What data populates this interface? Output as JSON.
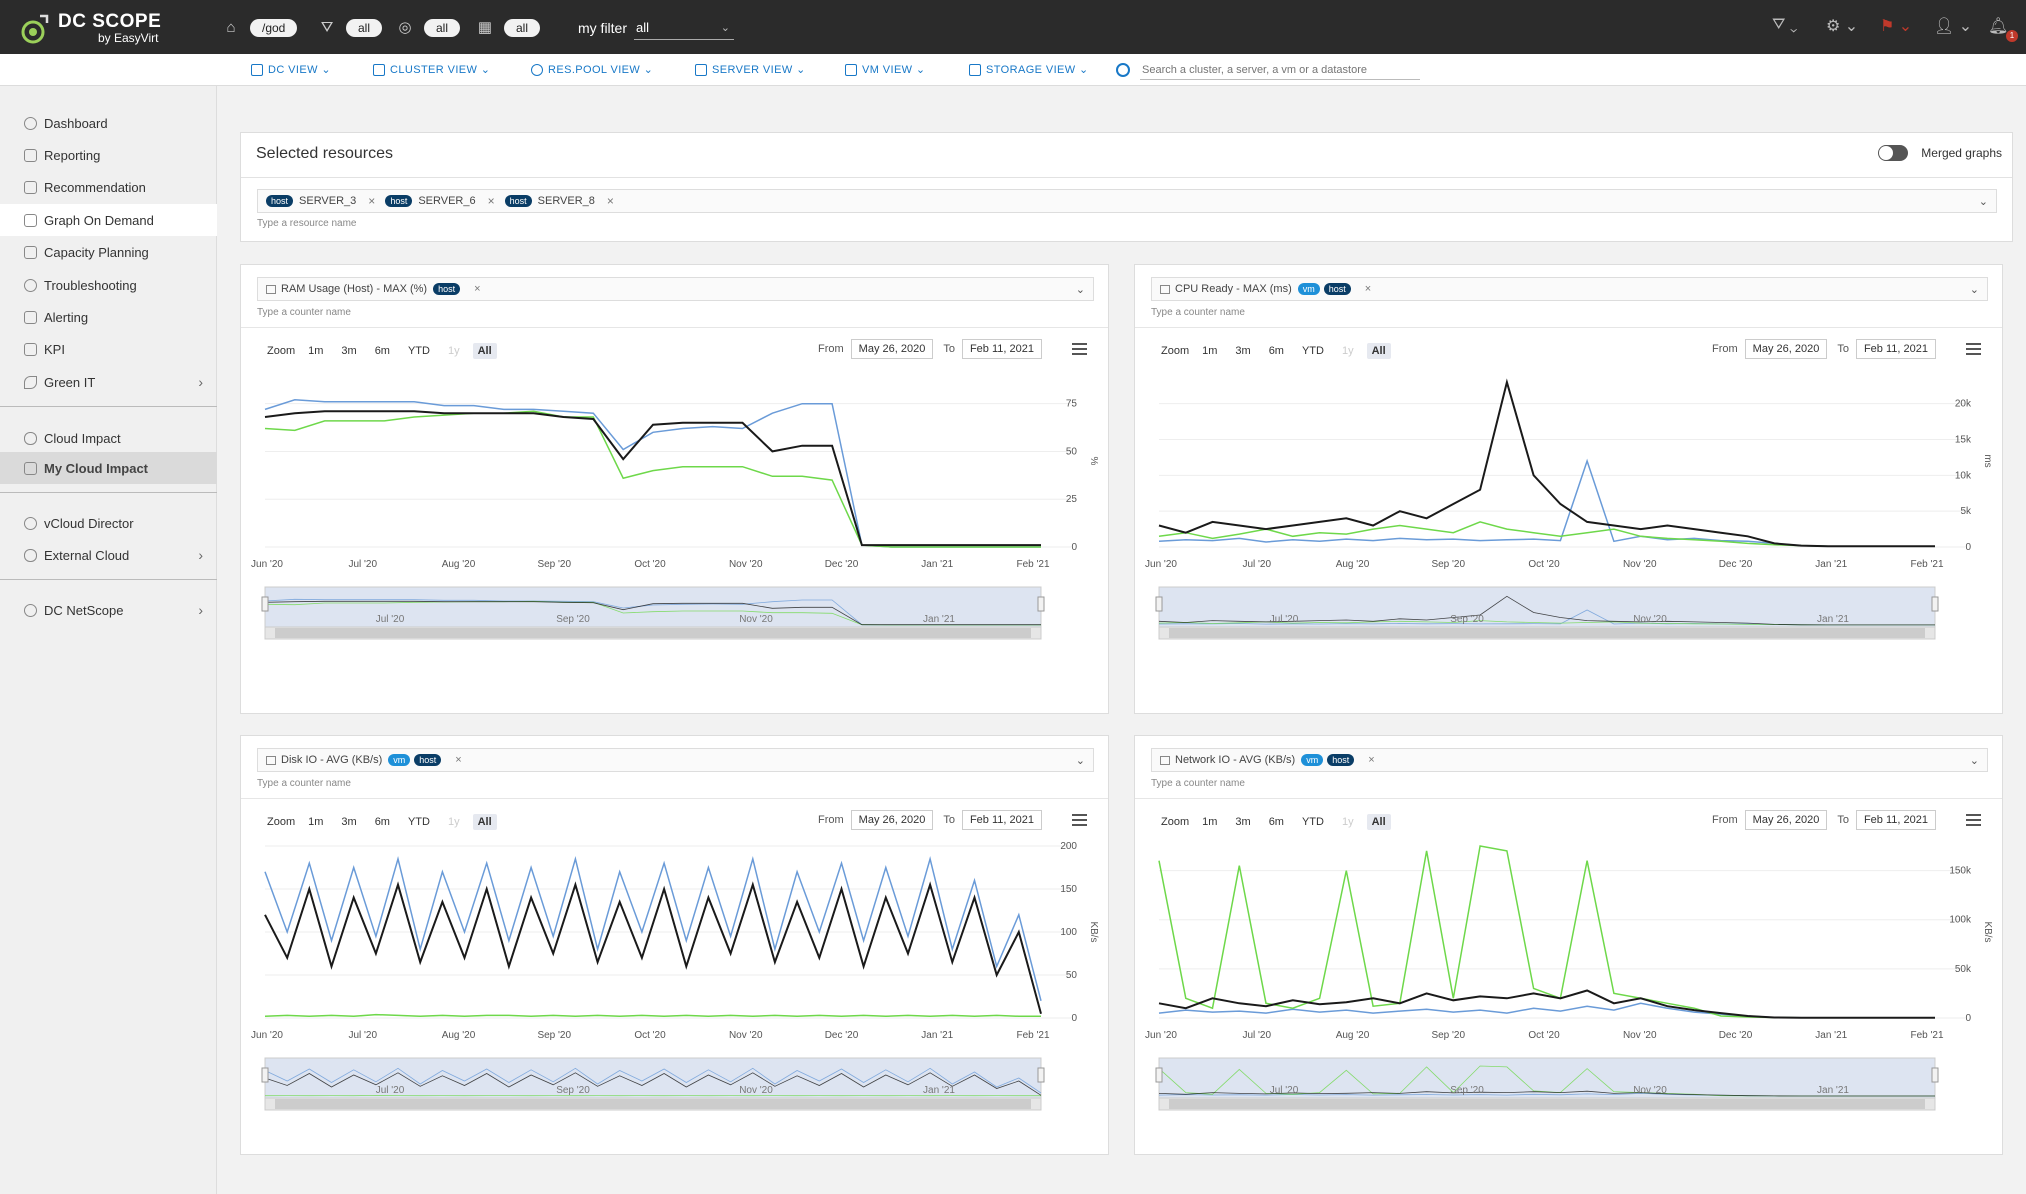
{
  "app": {
    "title": "DC SCOPE",
    "subtitle": "by EasyVirt"
  },
  "topbar": {
    "filters": [
      {
        "icon": "home-icon",
        "value": "/god"
      },
      {
        "icon": "funnel-icon",
        "value": "all"
      },
      {
        "icon": "target-icon",
        "value": "all"
      },
      {
        "icon": "calendar-icon",
        "value": "all"
      }
    ],
    "my_filter_label": "my filter",
    "my_filter_value": "all",
    "notification_count": "1"
  },
  "subnav": {
    "items": [
      {
        "label": "DC VIEW",
        "icon": "datacenter-icon"
      },
      {
        "label": "CLUSTER VIEW",
        "icon": "cluster-icon"
      },
      {
        "label": "RES.POOL VIEW",
        "icon": "gauge-icon"
      },
      {
        "label": "SERVER VIEW",
        "icon": "server-icon"
      },
      {
        "label": "VM VIEW",
        "icon": "vm-icon"
      },
      {
        "label": "STORAGE VIEW",
        "icon": "storage-icon"
      }
    ],
    "search_placeholder": "Search a cluster, a server, a vm or a datastore"
  },
  "sidebar": {
    "items": [
      {
        "label": "Dashboard",
        "icon": "dashboard-icon"
      },
      {
        "label": "Reporting",
        "icon": "report-icon"
      },
      {
        "label": "Recommendation",
        "icon": "thumb-icon"
      },
      {
        "label": "Graph On Demand",
        "icon": "chart-icon"
      },
      {
        "label": "Capacity Planning",
        "icon": "sliders-icon"
      },
      {
        "label": "Troubleshooting",
        "icon": "info-icon"
      },
      {
        "label": "Alerting",
        "icon": "bell-icon"
      },
      {
        "label": "KPI",
        "icon": "kpi-icon"
      },
      {
        "label": "Green IT",
        "icon": "leaf-icon"
      },
      {
        "label": "Cloud Impact",
        "icon": "cloud-icon"
      },
      {
        "label": "My Cloud Impact",
        "icon": "house-icon"
      },
      {
        "label": "vCloud Director",
        "icon": "vcloud-icon"
      },
      {
        "label": "External Cloud",
        "icon": "cloud-icon"
      },
      {
        "label": "DC NetScope",
        "icon": "globe-icon"
      }
    ]
  },
  "selected_resources": {
    "title": "Selected resources",
    "merged_label": "Merged graphs",
    "chips": [
      {
        "tag": "host",
        "name": "SERVER_3"
      },
      {
        "tag": "host",
        "name": "SERVER_6"
      },
      {
        "tag": "host",
        "name": "SERVER_8"
      }
    ],
    "hint": "Type a resource name"
  },
  "chart_controls": {
    "zoom_label": "Zoom",
    "zoom_buttons": [
      "1m",
      "3m",
      "6m",
      "YTD",
      "1y",
      "All"
    ],
    "from_label": "From",
    "from_value": "May 26, 2020",
    "to_label": "To",
    "to_value": "Feb 11, 2021",
    "counter_hint": "Type a counter name"
  },
  "colors": {
    "blue": "#6a9bd8",
    "green": "#6ed84a",
    "black": "#1a1a1a",
    "navy_tag": "#0a3d66",
    "vm_tag": "#1e90d8",
    "accent": "#1878c7"
  },
  "chart_data": [
    {
      "type": "line",
      "title": "RAM Usage (Host) - MAX (%)",
      "tags": [
        "host"
      ],
      "ylabel": "%",
      "yticks": [
        "0",
        "25",
        "50",
        "75"
      ],
      "ylim": [
        0,
        90
      ],
      "xticks": [
        "Jun '20",
        "Jul '20",
        "Aug '20",
        "Sep '20",
        "Oct '20",
        "Nov '20",
        "Dec '20",
        "Jan '21",
        "Feb '21"
      ],
      "nav_labels": [
        "Jul '20",
        "Sep '20",
        "Nov '20",
        "Jan '21"
      ],
      "series": [
        {
          "color": "blue",
          "values": [
            72,
            77,
            76,
            76,
            76,
            76,
            74,
            74,
            72,
            72,
            71,
            70,
            51,
            60,
            62,
            63,
            62,
            70,
            75,
            75,
            1,
            0,
            0,
            0,
            0,
            0,
            0
          ]
        },
        {
          "color": "green",
          "values": [
            62,
            61,
            66,
            66,
            66,
            68,
            69,
            70,
            70,
            71,
            68,
            68,
            36,
            40,
            42,
            42,
            42,
            37,
            37,
            35,
            1,
            0,
            0,
            0,
            0,
            0,
            0
          ]
        },
        {
          "color": "black",
          "values": [
            68,
            70,
            71,
            71,
            71,
            71,
            70,
            70,
            70,
            70,
            68,
            67,
            46,
            64,
            65,
            65,
            65,
            50,
            53,
            53,
            1,
            1,
            1,
            1,
            1,
            1,
            1
          ]
        }
      ]
    },
    {
      "type": "line",
      "title": "CPU Ready - MAX (ms)",
      "tags": [
        "vm",
        "host"
      ],
      "ylabel": "ms",
      "yticks": [
        "0",
        "5k",
        "10k",
        "15k",
        "20k"
      ],
      "ylim": [
        0,
        24000
      ],
      "xticks": [
        "Jun '20",
        "Jul '20",
        "Aug '20",
        "Sep '20",
        "Oct '20",
        "Nov '20",
        "Dec '20",
        "Jan '21",
        "Feb '21"
      ],
      "nav_labels": [
        "Jul '20",
        "Sep '20",
        "Nov '20",
        "Jan '21"
      ],
      "series": [
        {
          "color": "blue",
          "values": [
            800,
            1000,
            900,
            1200,
            700,
            1000,
            800,
            1100,
            900,
            1200,
            1000,
            1100,
            900,
            1000,
            1100,
            900,
            12000,
            800,
            1500,
            1000,
            1200,
            900,
            800,
            500,
            200,
            100,
            100,
            100,
            100,
            100
          ]
        },
        {
          "color": "green",
          "values": [
            1500,
            2000,
            1200,
            1800,
            2500,
            1500,
            2000,
            1800,
            2500,
            3000,
            2500,
            2000,
            3500,
            2500,
            2000,
            1500,
            2000,
            2500,
            1500,
            1200,
            1000,
            800,
            500,
            300,
            200,
            100,
            100,
            100,
            100,
            100
          ]
        },
        {
          "color": "black",
          "values": [
            3000,
            2000,
            3500,
            3000,
            2500,
            3000,
            3500,
            4000,
            3000,
            5000,
            4000,
            6000,
            8000,
            23000,
            10000,
            6000,
            3500,
            3000,
            2500,
            3000,
            2500,
            2000,
            1500,
            500,
            200,
            100,
            100,
            100,
            100,
            100
          ]
        }
      ]
    },
    {
      "type": "line",
      "title": "Disk IO - AVG (KB/s)",
      "tags": [
        "vm",
        "host"
      ],
      "ylabel": "KB/s",
      "yticks": [
        "0",
        "50",
        "100",
        "150",
        "200"
      ],
      "ylim": [
        0,
        200
      ],
      "xticks": [
        "Jun '20",
        "Jul '20",
        "Aug '20",
        "Sep '20",
        "Oct '20",
        "Nov '20",
        "Dec '20",
        "Jan '21",
        "Feb '21"
      ],
      "nav_labels": [
        "Jul '20",
        "Sep '20",
        "Nov '20",
        "Jan '21"
      ],
      "series": [
        {
          "color": "blue",
          "values": [
            170,
            100,
            180,
            90,
            175,
            95,
            185,
            80,
            170,
            100,
            180,
            90,
            175,
            95,
            185,
            80,
            170,
            100,
            180,
            90,
            175,
            95,
            185,
            80,
            170,
            100,
            180,
            90,
            175,
            95,
            185,
            80,
            160,
            60,
            120,
            20
          ]
        },
        {
          "color": "green",
          "values": [
            2,
            3,
            2,
            3,
            2,
            4,
            3,
            2,
            3,
            2,
            3,
            3,
            2,
            3,
            2,
            3,
            2,
            3,
            2,
            3,
            2,
            3,
            2,
            3,
            2,
            3,
            2,
            3,
            2,
            3,
            2,
            3,
            2,
            3,
            2,
            2
          ]
        },
        {
          "color": "black",
          "values": [
            120,
            70,
            150,
            60,
            140,
            75,
            155,
            65,
            135,
            70,
            150,
            60,
            140,
            75,
            155,
            65,
            135,
            70,
            150,
            60,
            140,
            75,
            155,
            65,
            135,
            70,
            150,
            60,
            140,
            75,
            155,
            65,
            140,
            50,
            100,
            5
          ]
        }
      ]
    },
    {
      "type": "line",
      "title": "Network IO - AVG (KB/s)",
      "tags": [
        "vm",
        "host"
      ],
      "ylabel": "KB/s",
      "yticks": [
        "0",
        "50k",
        "100k",
        "150k"
      ],
      "ylim": [
        0,
        175000
      ],
      "xticks": [
        "Jun '20",
        "Jul '20",
        "Aug '20",
        "Sep '20",
        "Oct '20",
        "Nov '20",
        "Dec '20",
        "Jan '21",
        "Feb '21"
      ],
      "nav_labels": [
        "Jul '20",
        "Sep '20",
        "Nov '20",
        "Jan '21"
      ],
      "series": [
        {
          "color": "blue",
          "values": [
            5000,
            8000,
            6000,
            7000,
            5000,
            9000,
            6000,
            8000,
            5000,
            7000,
            9000,
            6000,
            8000,
            5000,
            10000,
            7000,
            12000,
            8000,
            15000,
            10000,
            6000,
            4000,
            2000,
            500,
            200,
            200,
            200,
            200,
            200,
            200
          ]
        },
        {
          "color": "green",
          "values": [
            160000,
            20000,
            10000,
            155000,
            15000,
            10000,
            20000,
            150000,
            12000,
            15000,
            170000,
            20000,
            175000,
            170000,
            30000,
            20000,
            160000,
            25000,
            20000,
            15000,
            10000,
            2000,
            1000,
            500,
            200,
            200,
            200,
            200,
            200,
            200
          ]
        },
        {
          "color": "black",
          "values": [
            15000,
            10000,
            20000,
            15000,
            12000,
            18000,
            14000,
            16000,
            20000,
            15000,
            25000,
            18000,
            22000,
            20000,
            25000,
            20000,
            28000,
            15000,
            20000,
            12000,
            8000,
            5000,
            2000,
            500,
            200,
            200,
            200,
            200,
            200,
            200
          ]
        }
      ]
    }
  ]
}
